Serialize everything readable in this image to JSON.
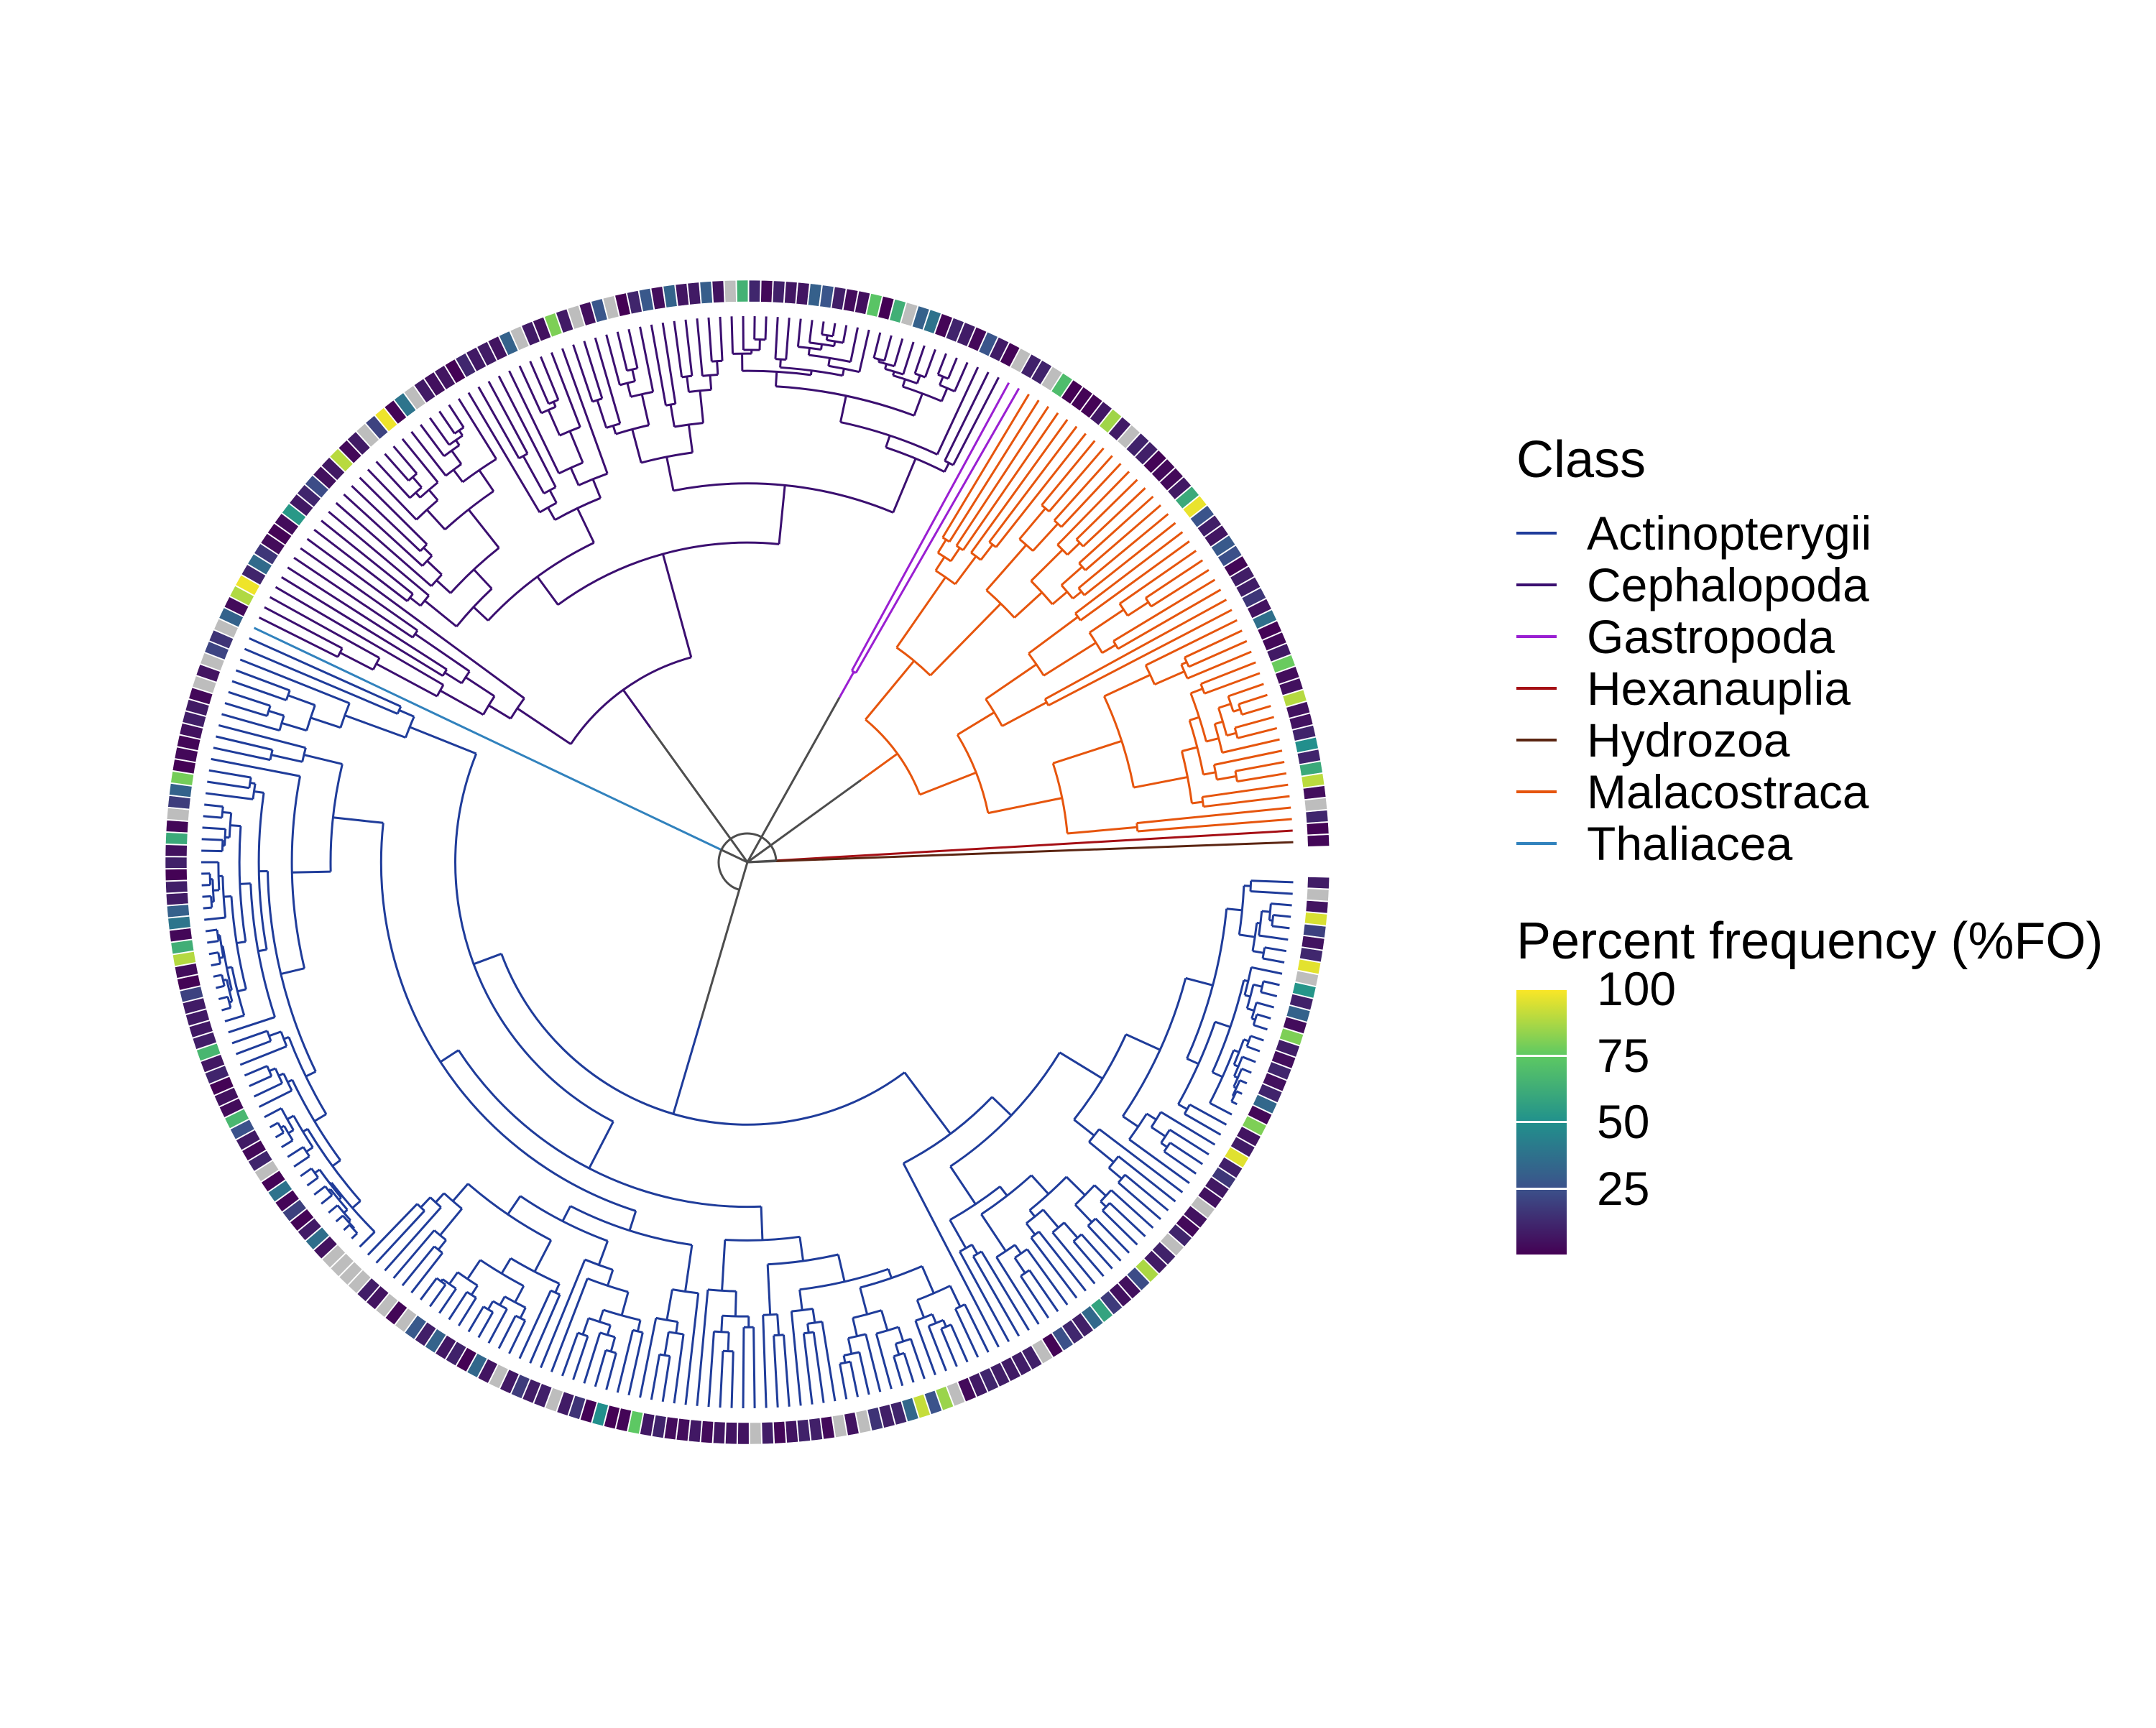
{
  "legend": {
    "class_title": "Class",
    "classes": [
      {
        "name": "Actinopterygii",
        "color": "#1f3c9a"
      },
      {
        "name": "Cephalopoda",
        "color": "#3b0f70"
      },
      {
        "name": "Gastropoda",
        "color": "#9a1fd2"
      },
      {
        "name": "Hexanauplia",
        "color": "#a50f15"
      },
      {
        "name": "Hydrozoa",
        "color": "#5b2512"
      },
      {
        "name": "Malacostraca",
        "color": "#e6550d"
      },
      {
        "name": "Thaliacea",
        "color": "#3182bd"
      }
    ],
    "freq_title": "Percent frequency (%FO)",
    "freq_ticks": [
      {
        "label": "100",
        "value": 100
      },
      {
        "label": "75",
        "value": 75
      },
      {
        "label": "50",
        "value": 50
      },
      {
        "label": "25",
        "value": 25
      }
    ],
    "freq_range": [
      0,
      100
    ]
  },
  "tree": {
    "layout": "circular",
    "backbone_color": "#4d4d4d",
    "missing_color": "#bdbdbd",
    "clades": [
      {
        "class": "Actinopterygii",
        "tips": 168
      },
      {
        "class": "Thaliacea",
        "tips": 1
      },
      {
        "class": "Cephalopoda",
        "tips": 76
      },
      {
        "class": "Gastropoda",
        "tips": 2
      },
      {
        "class": "Malacostraca",
        "tips": 46
      },
      {
        "class": "Hexanauplia",
        "tips": 1
      },
      {
        "class": "Hydrozoa",
        "tips": 1
      }
    ]
  }
}
